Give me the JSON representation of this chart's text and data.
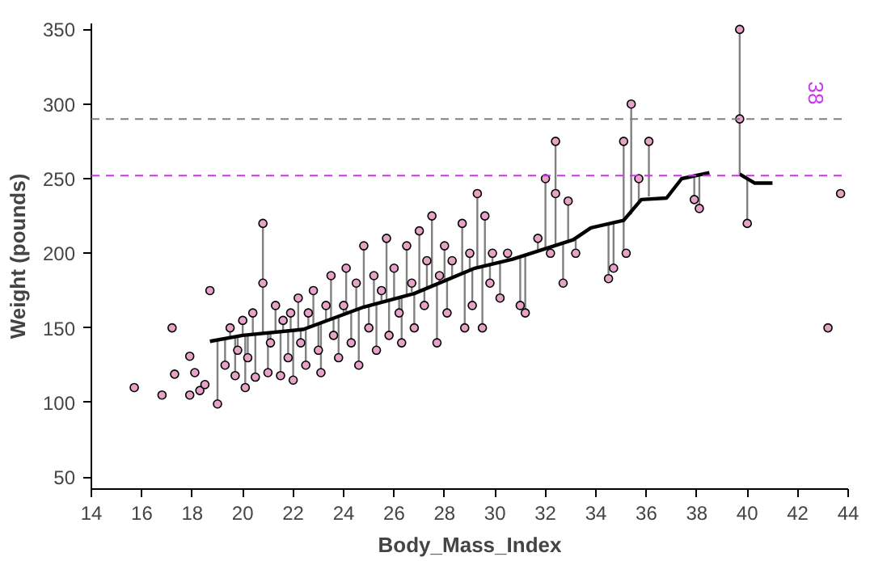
{
  "chart_data": {
    "type": "scatter",
    "xlabel": "Body_Mass_Index",
    "ylabel": "Weight (pounds)",
    "xlim": [
      14,
      44
    ],
    "xticks": [
      14,
      16,
      18,
      20,
      22,
      24,
      26,
      28,
      30,
      32,
      34,
      36,
      38,
      40,
      42,
      44
    ],
    "ylim": [
      42,
      354
    ],
    "yticks": [
      50,
      100,
      150,
      200,
      250,
      300,
      350
    ],
    "grid": false,
    "marker": "circle",
    "ref_lines": [
      {
        "axis": "y",
        "value": 290,
        "label": null,
        "color": "#808080",
        "line_style": "dashed"
      },
      {
        "axis": "y",
        "value": 252,
        "label": null,
        "color": "#cc33ee",
        "line_style": "dashed"
      }
    ],
    "annotations": [
      "38"
    ],
    "series": [
      {
        "color": "#e6a3c6",
        "x": [
          15.7,
          16.8,
          17.2,
          17.3,
          17.9,
          17.9,
          18.1,
          18.3,
          18.5,
          18.7,
          19.0,
          19.3,
          19.5,
          19.7,
          19.8,
          20.0,
          20.1,
          20.2,
          20.4,
          20.5,
          20.8,
          20.8,
          21.0,
          21.1,
          21.3,
          21.5,
          21.6,
          21.8,
          21.9,
          22.0,
          22.2,
          22.3,
          22.5,
          22.6,
          22.8,
          23.0,
          23.1,
          23.3,
          23.5,
          23.6,
          23.8,
          24.0,
          24.1,
          24.3,
          24.5,
          24.6,
          24.8,
          25.0,
          25.2,
          25.3,
          25.5,
          25.7,
          25.8,
          26.0,
          26.2,
          26.3,
          26.5,
          26.7,
          26.8,
          27.0,
          27.2,
          27.3,
          27.5,
          27.7,
          27.8,
          28.0,
          28.1,
          28.3,
          28.7,
          28.8,
          29.0,
          29.1,
          29.3,
          29.5,
          29.6,
          29.8,
          29.9,
          30.2,
          30.5,
          31.0,
          31.2,
          31.7,
          32.0,
          32.2,
          32.4,
          32.4,
          32.7,
          32.9,
          33.2,
          34.5,
          34.7,
          35.1,
          35.2,
          35.4,
          35.7,
          36.1,
          37.9,
          38.1,
          39.7,
          39.7,
          40.0,
          43.2,
          43.7
        ],
        "values": [
          110,
          105,
          150,
          119,
          105,
          131,
          120,
          108,
          112,
          175,
          99,
          125,
          150,
          118,
          135,
          155,
          110,
          130,
          160,
          117,
          220,
          180,
          120,
          140,
          165,
          118,
          155,
          130,
          160,
          115,
          170,
          140,
          125,
          160,
          175,
          135,
          120,
          165,
          185,
          145,
          130,
          165,
          190,
          140,
          180,
          125,
          205,
          150,
          185,
          135,
          175,
          210,
          145,
          190,
          160,
          140,
          205,
          180,
          150,
          215,
          165,
          195,
          225,
          140,
          185,
          205,
          160,
          195,
          220,
          150,
          200,
          165,
          240,
          150,
          225,
          180,
          200,
          170,
          200,
          165,
          160,
          210,
          250,
          200,
          275,
          240,
          180,
          235,
          200,
          183,
          190,
          275,
          200,
          300,
          250,
          275,
          236,
          230,
          350,
          290,
          220,
          150,
          240
        ],
        "errors": [
          null,
          null,
          null,
          null,
          null,
          null,
          null,
          null,
          null,
          null,
          [
            99,
            142
          ],
          [
            125,
            143
          ],
          [
            143,
            150
          ],
          [
            118,
            144
          ],
          [
            135,
            145
          ],
          [
            145,
            155
          ],
          [
            110,
            145
          ],
          [
            130,
            145
          ],
          [
            146,
            160
          ],
          [
            117,
            146
          ],
          [
            147,
            220
          ],
          null,
          [
            120,
            147
          ],
          [
            140,
            147
          ],
          [
            147,
            165
          ],
          [
            118,
            148
          ],
          [
            148,
            155
          ],
          [
            130,
            149
          ],
          [
            149,
            160
          ],
          [
            115,
            149
          ],
          [
            149,
            170
          ],
          [
            140,
            150
          ],
          [
            125,
            150
          ],
          [
            150,
            160
          ],
          [
            151,
            175
          ],
          [
            135,
            152
          ],
          [
            120,
            153
          ],
          [
            154,
            165
          ],
          [
            155,
            185
          ],
          [
            145,
            156
          ],
          [
            130,
            157
          ],
          [
            158,
            165
          ],
          [
            159,
            190
          ],
          [
            140,
            160
          ],
          [
            161,
            180
          ],
          [
            125,
            162
          ],
          [
            164,
            205
          ],
          [
            150,
            165
          ],
          [
            166,
            185
          ],
          [
            135,
            166
          ],
          [
            167,
            175
          ],
          [
            168,
            210
          ],
          [
            145,
            168
          ],
          [
            169,
            190
          ],
          [
            160,
            170
          ],
          [
            140,
            171
          ],
          [
            172,
            205
          ],
          [
            174,
            180
          ],
          [
            150,
            174
          ],
          [
            175,
            215
          ],
          [
            165,
            176
          ],
          [
            177,
            195
          ],
          [
            178,
            225
          ],
          [
            140,
            180
          ],
          [
            181,
            185
          ],
          [
            182,
            205
          ],
          [
            160,
            183
          ],
          [
            184,
            195
          ],
          [
            187,
            220
          ],
          [
            150,
            188
          ],
          [
            189,
            200
          ],
          [
            165,
            189
          ],
          [
            190,
            240
          ],
          [
            150,
            191
          ],
          [
            191,
            225
          ],
          [
            180,
            192
          ],
          [
            192,
            200
          ],
          [
            170,
            194
          ],
          [
            195,
            200
          ],
          [
            165,
            197
          ],
          [
            160,
            198
          ],
          [
            201,
            210
          ],
          [
            203,
            250
          ],
          [
            200,
            204
          ],
          [
            205,
            275
          ],
          null,
          [
            180,
            206
          ],
          [
            207,
            235
          ],
          [
            200,
            209
          ],
          [
            183,
            220
          ],
          [
            190,
            221
          ],
          [
            200,
            275
          ],
          null,
          [
            226,
            300
          ],
          [
            233,
            250
          ],
          [
            238,
            275
          ],
          [
            236,
            251
          ],
          [
            230,
            252
          ],
          [
            253,
            350
          ],
          null,
          [
            220,
            250
          ],
          null,
          null
        ]
      },
      {
        "type": "line",
        "marker": "none",
        "color": "#000000",
        "x": [
          18.7,
          20.0,
          22.4,
          24.8,
          26.8,
          29.2,
          30.7,
          33.1,
          33.8,
          35.1,
          35.8,
          36.8,
          37.4,
          38.5,
          39.1,
          39.7,
          40.3,
          41.0
        ],
        "values": [
          141,
          145,
          149,
          164,
          173,
          190,
          196,
          209,
          217,
          222,
          236,
          237,
          250,
          254,
          null,
          253,
          247,
          247
        ]
      }
    ]
  }
}
